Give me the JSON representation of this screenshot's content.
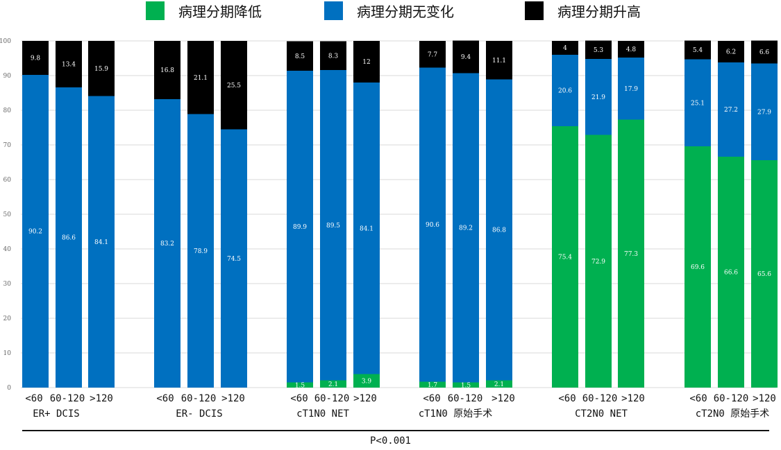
{
  "legend": [
    {
      "label": "病理分期降低",
      "color": "#00b050"
    },
    {
      "label": "病理分期无变化",
      "color": "#0070c0"
    },
    {
      "label": "病理分期升高",
      "color": "#000000"
    }
  ],
  "footer": {
    "pvalue": "P<0.001"
  },
  "chart_data": {
    "type": "bar",
    "stacked": true,
    "ylim": [
      0,
      100
    ],
    "yticks": [
      0,
      10,
      20,
      30,
      40,
      50,
      60,
      70,
      80,
      90,
      100
    ],
    "colors": {
      "down": "#00b050",
      "same": "#0070c0",
      "up": "#000000"
    },
    "groups": [
      {
        "name": "ER+ DCIS",
        "categories": [
          "<60",
          "60-120",
          ">120"
        ],
        "down": [
          null,
          null,
          null
        ],
        "same": [
          90.2,
          86.6,
          84.1
        ],
        "up": [
          9.8,
          13.4,
          15.9
        ]
      },
      {
        "name": "ER- DCIS",
        "categories": [
          "<60",
          "60-120",
          ">120"
        ],
        "down": [
          null,
          null,
          null
        ],
        "same": [
          83.2,
          78.9,
          74.5
        ],
        "up": [
          16.8,
          21.1,
          25.5
        ]
      },
      {
        "name": "cT1N0 NET",
        "categories": [
          "<60",
          "60-120",
          ">120"
        ],
        "down": [
          1.5,
          2.1,
          3.9
        ],
        "same": [
          89.9,
          89.5,
          84.1
        ],
        "up": [
          8.5,
          8.3,
          12
        ]
      },
      {
        "name": "cT1N0 原始手术",
        "categories": [
          "<60",
          "60-120",
          ">120"
        ],
        "down": [
          1.7,
          1.5,
          2.1
        ],
        "same": [
          90.6,
          89.2,
          86.8
        ],
        "up": [
          7.7,
          9.4,
          11.1
        ]
      },
      {
        "name": "CT2N0 NET",
        "categories": [
          "<60",
          "60-120",
          ">120"
        ],
        "down": [
          75.4,
          72.9,
          77.3
        ],
        "same": [
          20.6,
          21.9,
          17.9
        ],
        "up": [
          4,
          5.3,
          4.8
        ]
      },
      {
        "name": "cT2N0 原始手术",
        "categories": [
          "<60",
          "60-120",
          ">120"
        ],
        "down": [
          69.6,
          66.6,
          65.6
        ],
        "same": [
          25.1,
          27.2,
          27.9
        ],
        "up": [
          5.4,
          6.2,
          6.6
        ]
      }
    ]
  }
}
